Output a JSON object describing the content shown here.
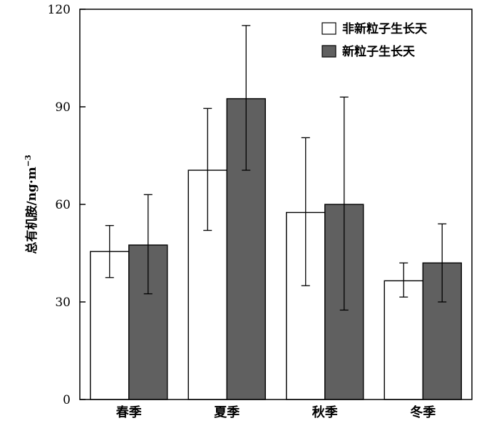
{
  "chart_data": {
    "type": "bar",
    "title": "",
    "xlabel": "",
    "ylabel": "总有机胺/ng·m",
    "ylabel_superscript": "−3",
    "ylim": [
      0,
      120
    ],
    "yticks": [
      0,
      30,
      60,
      90,
      120
    ],
    "categories": [
      "春季",
      "夏季",
      "秋季",
      "冬季"
    ],
    "series": [
      {
        "name": "非新粒子生长天",
        "color": "#ffffff",
        "values": [
          45.5,
          70.5,
          57.5,
          36.5
        ],
        "err_low": [
          37.5,
          52.0,
          35.0,
          31.5
        ],
        "err_high": [
          53.5,
          89.5,
          80.5,
          42.0
        ]
      },
      {
        "name": "新粒子生长天",
        "color": "#606060",
        "values": [
          47.5,
          92.5,
          60.0,
          42.0
        ],
        "err_low": [
          32.5,
          70.5,
          27.5,
          30.0
        ],
        "err_high": [
          63.0,
          115.0,
          93.0,
          54.0
        ]
      }
    ],
    "legend_position": "top-right",
    "grid": false
  }
}
